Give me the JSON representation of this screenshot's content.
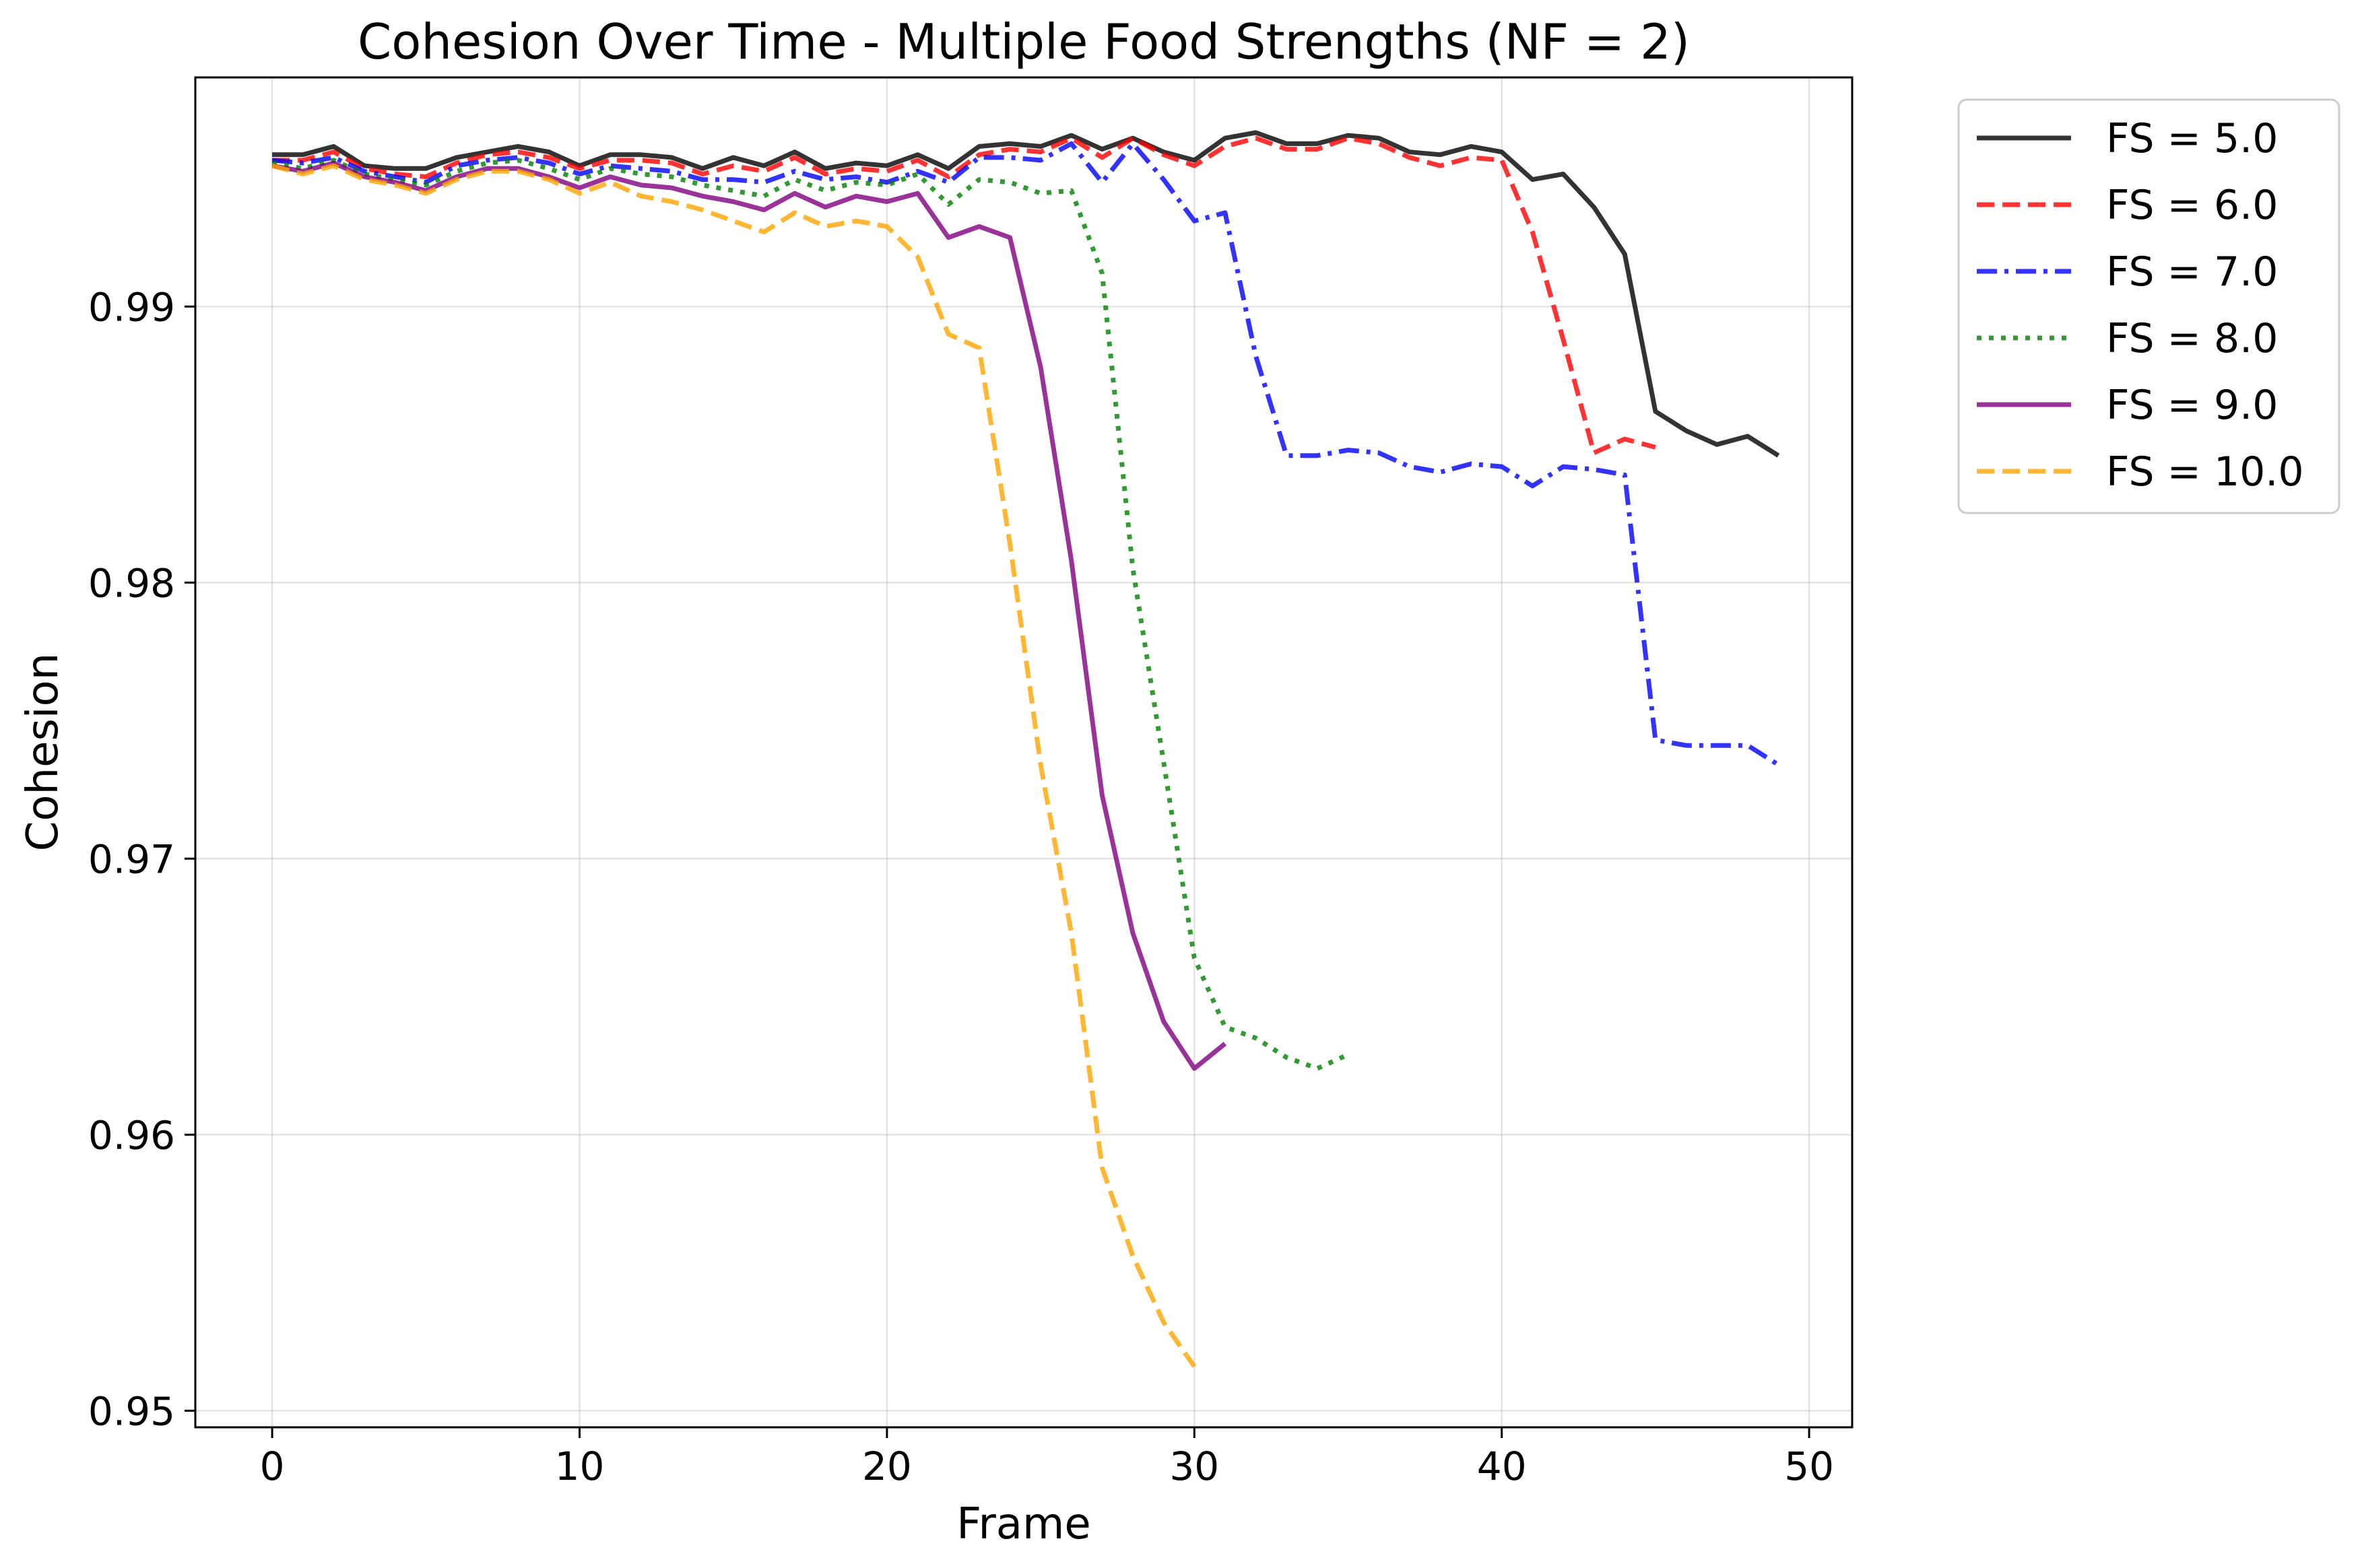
{
  "chart_data": {
    "type": "line",
    "title": "Cohesion Over Time - Multiple Food Strengths (NF = 2)",
    "xlabel": "Frame",
    "ylabel": "Cohesion",
    "xlim": [
      -2.5,
      51.4
    ],
    "ylim": [
      0.9494,
      0.9983
    ],
    "xticks": [
      0,
      10,
      20,
      30,
      40,
      50
    ],
    "xtick_labels": [
      "0",
      "10",
      "20",
      "30",
      "40",
      "50"
    ],
    "yticks": [
      0.95,
      0.96,
      0.97,
      0.98,
      0.99
    ],
    "ytick_labels": [
      "0.95",
      "0.96",
      "0.97",
      "0.98",
      "0.99"
    ],
    "grid": true,
    "legend_position": "outside-top-right",
    "series": [
      {
        "name": "FS = 5.0",
        "color": "#000000",
        "dash": "solid",
        "x": [
          0,
          1,
          2,
          3,
          4,
          5,
          6,
          7,
          8,
          9,
          10,
          11,
          12,
          13,
          14,
          15,
          16,
          17,
          18,
          19,
          20,
          21,
          22,
          23,
          24,
          25,
          26,
          27,
          28,
          29,
          30,
          31,
          32,
          33,
          34,
          35,
          36,
          37,
          38,
          39,
          40,
          41,
          42,
          43,
          44,
          45,
          46,
          47,
          48,
          49
        ],
        "y": [
          0.9955,
          0.9955,
          0.9958,
          0.9951,
          0.995,
          0.995,
          0.9954,
          0.9956,
          0.9958,
          0.9956,
          0.9951,
          0.9955,
          0.9955,
          0.9954,
          0.995,
          0.9954,
          0.9951,
          0.9956,
          0.995,
          0.9952,
          0.9951,
          0.9955,
          0.995,
          0.9958,
          0.9959,
          0.9958,
          0.9962,
          0.9957,
          0.9961,
          0.9956,
          0.9953,
          0.9961,
          0.9963,
          0.9959,
          0.9959,
          0.9962,
          0.9961,
          0.9956,
          0.9955,
          0.9958,
          0.9956,
          0.9946,
          0.9948,
          0.9936,
          0.9919,
          0.9862,
          0.9855,
          0.985,
          0.9853,
          0.9846
        ]
      },
      {
        "name": "FS = 6.0",
        "color": "#ff0000",
        "dash": "dashed",
        "x": [
          0,
          1,
          2,
          3,
          4,
          5,
          6,
          7,
          8,
          9,
          10,
          11,
          12,
          13,
          14,
          15,
          16,
          17,
          18,
          19,
          20,
          21,
          22,
          23,
          24,
          25,
          26,
          27,
          28,
          29,
          30,
          31,
          32,
          33,
          34,
          35,
          36,
          37,
          38,
          39,
          40,
          41,
          42,
          43,
          44,
          45
        ],
        "y": [
          0.9953,
          0.9953,
          0.9956,
          0.995,
          0.9948,
          0.9947,
          0.9952,
          0.9955,
          0.9956,
          0.9954,
          0.995,
          0.9953,
          0.9953,
          0.9952,
          0.9948,
          0.9951,
          0.9949,
          0.9954,
          0.9948,
          0.995,
          0.9949,
          0.9953,
          0.9947,
          0.9955,
          0.9957,
          0.9956,
          0.9961,
          0.9954,
          0.9961,
          0.9955,
          0.9951,
          0.9958,
          0.9961,
          0.9957,
          0.9957,
          0.9961,
          0.9959,
          0.9954,
          0.9951,
          0.9954,
          0.9953,
          0.9927,
          0.9888,
          0.9847,
          0.9852,
          0.9849
        ]
      },
      {
        "name": "FS = 7.0",
        "color": "#0000ff",
        "dash": "dashdot",
        "x": [
          0,
          1,
          2,
          3,
          4,
          5,
          6,
          7,
          8,
          9,
          10,
          11,
          12,
          13,
          14,
          15,
          16,
          17,
          18,
          19,
          20,
          21,
          22,
          23,
          24,
          25,
          26,
          27,
          28,
          29,
          30,
          31,
          32,
          33,
          34,
          35,
          36,
          37,
          38,
          39,
          40,
          41,
          42,
          43,
          44,
          45,
          46,
          47,
          48,
          49
        ],
        "y": [
          0.9953,
          0.9952,
          0.9954,
          0.9949,
          0.9947,
          0.9945,
          0.9951,
          0.9953,
          0.9954,
          0.9952,
          0.9948,
          0.9951,
          0.995,
          0.9949,
          0.9946,
          0.9946,
          0.9945,
          0.9949,
          0.9946,
          0.9947,
          0.9945,
          0.9949,
          0.9945,
          0.9954,
          0.9954,
          0.9953,
          0.9959,
          0.9945,
          0.9959,
          0.9946,
          0.9931,
          0.9934,
          0.9882,
          0.9846,
          0.9846,
          0.9848,
          0.9847,
          0.9842,
          0.984,
          0.9843,
          0.9842,
          0.9835,
          0.9842,
          0.9841,
          0.9839,
          0.9743,
          0.9741,
          0.9741,
          0.9741,
          0.9734
        ]
      },
      {
        "name": "FS = 8.0",
        "color": "#008000",
        "dash": "dotted",
        "x": [
          0,
          1,
          2,
          3,
          4,
          5,
          6,
          7,
          8,
          9,
          10,
          11,
          12,
          13,
          14,
          15,
          16,
          17,
          18,
          19,
          20,
          21,
          22,
          23,
          24,
          25,
          26,
          27,
          28,
          29,
          30,
          31,
          32,
          33,
          34,
          35
        ],
        "y": [
          0.9952,
          0.995,
          0.9953,
          0.9948,
          0.9946,
          0.9944,
          0.9949,
          0.9952,
          0.9953,
          0.995,
          0.9946,
          0.995,
          0.9948,
          0.9947,
          0.9944,
          0.9942,
          0.994,
          0.9946,
          0.9942,
          0.9945,
          0.9944,
          0.9948,
          0.9937,
          0.9946,
          0.9945,
          0.9941,
          0.9942,
          0.9912,
          0.9805,
          0.9735,
          0.9664,
          0.9639,
          0.9635,
          0.9628,
          0.9624,
          0.9629
        ]
      },
      {
        "name": "FS = 9.0",
        "color": "#800080",
        "dash": "solid",
        "x": [
          0,
          1,
          2,
          3,
          4,
          5,
          6,
          7,
          8,
          9,
          10,
          11,
          12,
          13,
          14,
          15,
          16,
          17,
          18,
          19,
          20,
          21,
          22,
          23,
          24,
          25,
          26,
          27,
          28,
          29,
          30,
          31
        ],
        "y": [
          0.9951,
          0.9949,
          0.9952,
          0.9947,
          0.9945,
          0.9942,
          0.9947,
          0.995,
          0.995,
          0.9947,
          0.9943,
          0.9947,
          0.9944,
          0.9943,
          0.994,
          0.9938,
          0.9935,
          0.9941,
          0.9936,
          0.994,
          0.9938,
          0.9941,
          0.9925,
          0.9929,
          0.9925,
          0.9878,
          0.9808,
          0.9723,
          0.9673,
          0.9641,
          0.9624,
          0.9633
        ]
      },
      {
        "name": "FS = 10.0",
        "color": "#ffa500",
        "dash": "dashed",
        "x": [
          0,
          1,
          2,
          3,
          4,
          5,
          6,
          7,
          8,
          9,
          10,
          11,
          12,
          13,
          14,
          15,
          16,
          17,
          18,
          19,
          20,
          21,
          22,
          23,
          24,
          25,
          26,
          27,
          28,
          29,
          30
        ],
        "y": [
          0.9951,
          0.9948,
          0.9951,
          0.9946,
          0.9944,
          0.9941,
          0.9946,
          0.9949,
          0.9949,
          0.9946,
          0.9941,
          0.9945,
          0.994,
          0.9938,
          0.9935,
          0.9931,
          0.9927,
          0.9934,
          0.9929,
          0.9931,
          0.9929,
          0.9918,
          0.989,
          0.9885,
          0.9814,
          0.9734,
          0.9673,
          0.9588,
          0.9556,
          0.9532,
          0.9516
        ]
      }
    ]
  }
}
